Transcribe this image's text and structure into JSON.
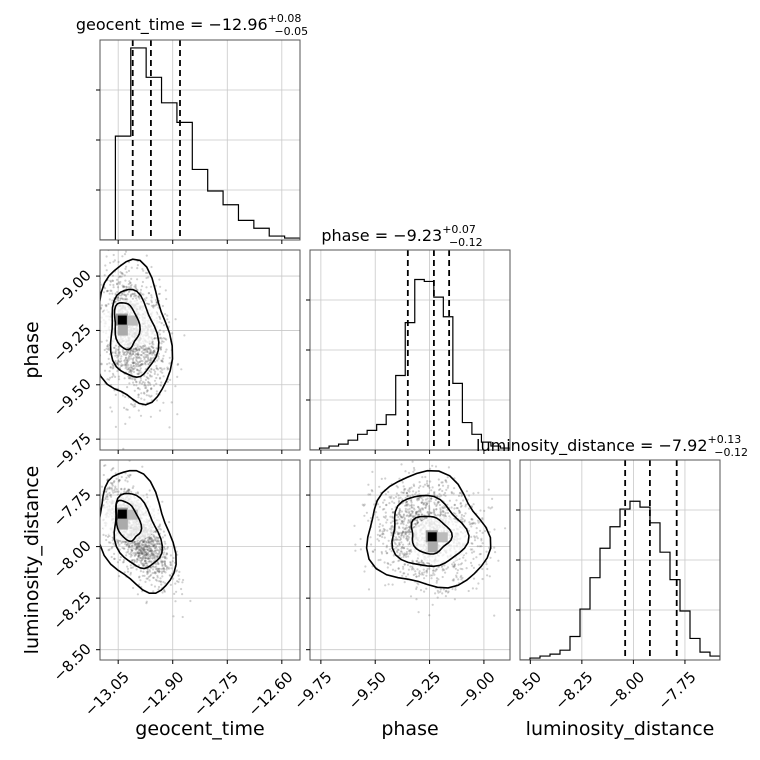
{
  "chart_data": {
    "type": "corner",
    "parameters": [
      "geocent_time",
      "phase",
      "luminosity_distance"
    ],
    "axis_labels": {
      "geocent_time": "geocent_time",
      "phase": "phase",
      "luminosity_distance": "luminosity_distance"
    },
    "ranges": {
      "geocent_time": [
        -13.1,
        -12.55
      ],
      "phase": [
        -9.8,
        -8.88
      ],
      "luminosity_distance": [
        -8.55,
        -7.58
      ]
    },
    "ticks": {
      "geocent_time": [
        "−13.05",
        "−12.90",
        "−12.75",
        "−12.60"
      ],
      "phase": [
        "−9.75",
        "−9.50",
        "−9.25",
        "−9.00"
      ],
      "luminosity_distance": [
        "−8.50",
        "−8.25",
        "−8.00",
        "−7.75"
      ]
    },
    "tick_values": {
      "geocent_time": [
        -13.05,
        -12.9,
        -12.75,
        -12.6
      ],
      "phase": [
        -9.75,
        -9.5,
        -9.25,
        -9.0
      ],
      "luminosity_distance": [
        -8.5,
        -8.25,
        -8.0,
        -7.75
      ]
    },
    "titles": [
      {
        "name": "geocent_time",
        "prefix": "geocent_time = −12.96",
        "plus": "+0.08",
        "minus": "−0.05"
      },
      {
        "name": "phase",
        "prefix": "phase = −9.23",
        "plus": "+0.07",
        "minus": "−0.12"
      },
      {
        "name": "luminosity_distance",
        "prefix": "luminosity_distance = −7.92",
        "plus": "+0.13",
        "minus": "−0.12"
      }
    ],
    "quantiles": {
      "geocent_time": [
        -13.01,
        -12.96,
        -12.88
      ],
      "phase": [
        -9.35,
        -9.23,
        -9.16
      ],
      "luminosity_distance": [
        -8.04,
        -7.92,
        -7.79
      ]
    },
    "histograms": {
      "geocent_time": [
        0.0,
        0.53,
        0.98,
        0.83,
        0.7,
        0.6,
        0.36,
        0.25,
        0.18,
        0.1,
        0.06,
        0.02,
        0.01
      ],
      "phase": [
        0.0,
        0.01,
        0.02,
        0.03,
        0.05,
        0.08,
        0.1,
        0.13,
        0.18,
        0.38,
        0.65,
        0.87,
        0.86,
        0.78,
        0.68,
        0.34,
        0.14,
        0.08,
        0.04,
        0.02,
        0.01
      ],
      "luminosity_distance": [
        0.0,
        0.01,
        0.02,
        0.03,
        0.05,
        0.12,
        0.26,
        0.42,
        0.57,
        0.68,
        0.77,
        0.81,
        0.78,
        0.7,
        0.55,
        0.41,
        0.25,
        0.11,
        0.04,
        0.02
      ]
    },
    "modes_2d": {
      "phase_vs_geocent_time": {
        "x": -13.04,
        "y": -9.2
      },
      "luminosity_distance_vs_geocent_time": {
        "x": -13.04,
        "y": -7.84
      },
      "luminosity_distance_vs_phase": {
        "x": -9.24,
        "y": -7.95
      }
    },
    "grid": true,
    "legend": "none"
  }
}
